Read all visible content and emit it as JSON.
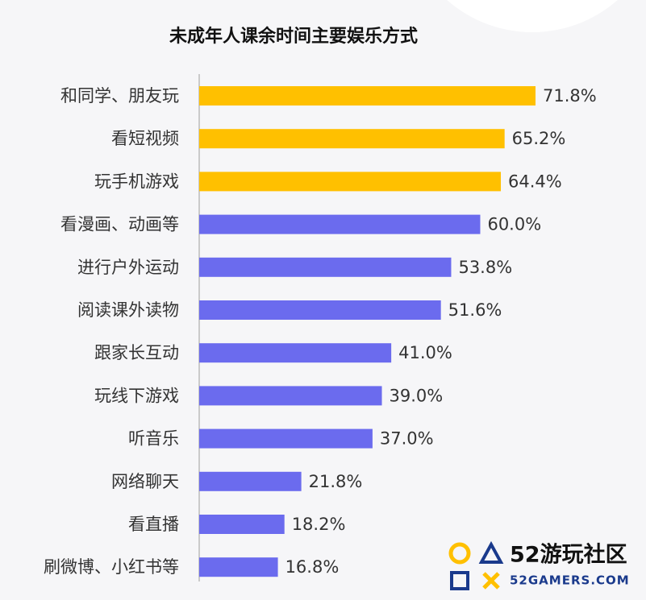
{
  "chart_data": {
    "type": "hbar",
    "title": "未成年人课余时间主要娱乐方式",
    "categories": [
      "和同学、朋友玩",
      "看短视频",
      "玩手机游戏",
      "看漫画、动画等",
      "进行户外运动",
      "阅读课外读物",
      "跟家长互动",
      "玩线下游戏",
      "听音乐",
      "网络聊天",
      "看直播",
      "刷微博、小红书等"
    ],
    "values": [
      71.8,
      65.2,
      64.4,
      60.0,
      53.8,
      51.6,
      41.0,
      39.0,
      37.0,
      21.8,
      18.2,
      16.8
    ],
    "value_labels": [
      "71.8%",
      "65.2%",
      "64.4%",
      "60.0%",
      "53.8%",
      "51.6%",
      "41.0%",
      "39.0%",
      "37.0%",
      "21.8%",
      "18.2%",
      "16.8%"
    ],
    "colors": [
      "#ffc000",
      "#ffc000",
      "#ffc000",
      "#6b6bee",
      "#6b6bee",
      "#6b6bee",
      "#6b6bee",
      "#6b6bee",
      "#6b6bee",
      "#6b6bee",
      "#6b6bee",
      "#6b6bee"
    ]
  },
  "watermark": {
    "name": "52游玩社区",
    "site": "52GAMERS.COM"
  }
}
